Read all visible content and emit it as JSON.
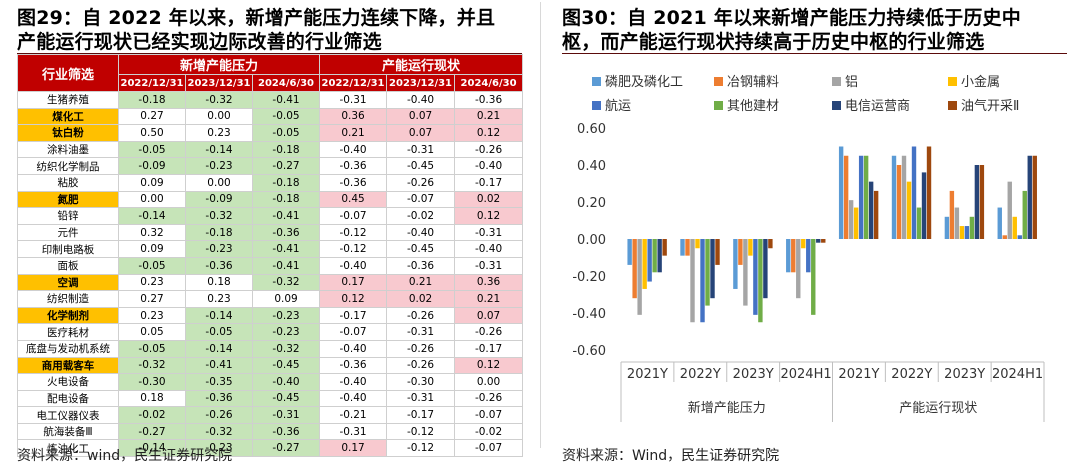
{
  "left": {
    "title_lines": [
      "图29：自 2022 年以来，新增产能压力连续下降，并且",
      "产能运行现状已经实现边际改善的行业筛选"
    ],
    "source": "资料来源：wind，民生证券研究院",
    "table": {
      "col1_header": "行业筛选",
      "group1_header": "新增产能压力",
      "group2_header": "产能运行现状",
      "dates": [
        "2022/12/31",
        "2023/12/31",
        "2024/6/30",
        "2022/12/31",
        "2023/12/31",
        "2024/6/30"
      ],
      "rows": [
        {
          "name": "生猪养殖",
          "hl": false,
          "v": [
            "-0.18",
            "-0.32",
            "-0.41",
            "-0.31",
            "-0.40",
            "-0.36"
          ],
          "pink": [
            false,
            false,
            false
          ]
        },
        {
          "name": "煤化工",
          "hl": true,
          "v": [
            "0.27",
            "0.00",
            "-0.05",
            "0.36",
            "0.07",
            "0.21"
          ],
          "pink": [
            true,
            true,
            true
          ]
        },
        {
          "name": "钛白粉",
          "hl": true,
          "v": [
            "0.50",
            "0.23",
            "-0.05",
            "0.21",
            "0.07",
            "0.12"
          ],
          "pink": [
            true,
            true,
            true
          ]
        },
        {
          "name": "涂料油墨",
          "hl": false,
          "v": [
            "-0.05",
            "-0.14",
            "-0.18",
            "-0.40",
            "-0.31",
            "-0.26"
          ],
          "pink": [
            false,
            false,
            false
          ]
        },
        {
          "name": "纺织化学制品",
          "hl": false,
          "v": [
            "-0.09",
            "-0.23",
            "-0.27",
            "-0.36",
            "-0.45",
            "-0.40"
          ],
          "pink": [
            false,
            false,
            false
          ]
        },
        {
          "name": "粘胶",
          "hl": false,
          "v": [
            "0.09",
            "0.00",
            "-0.18",
            "-0.36",
            "-0.26",
            "-0.17"
          ],
          "pink": [
            false,
            false,
            false
          ]
        },
        {
          "name": "氮肥",
          "hl": true,
          "v": [
            "0.00",
            "-0.09",
            "-0.18",
            "0.45",
            "-0.07",
            "0.02"
          ],
          "pink": [
            true,
            false,
            true
          ]
        },
        {
          "name": "铅锌",
          "hl": false,
          "v": [
            "-0.14",
            "-0.32",
            "-0.41",
            "-0.07",
            "-0.02",
            "0.12"
          ],
          "pink": [
            false,
            false,
            true
          ]
        },
        {
          "name": "元件",
          "hl": false,
          "v": [
            "0.32",
            "-0.18",
            "-0.36",
            "-0.12",
            "-0.40",
            "-0.31"
          ],
          "pink": [
            false,
            false,
            false
          ]
        },
        {
          "name": "印制电路板",
          "hl": false,
          "v": [
            "0.09",
            "-0.23",
            "-0.41",
            "-0.12",
            "-0.45",
            "-0.40"
          ],
          "pink": [
            false,
            false,
            false
          ]
        },
        {
          "name": "面板",
          "hl": false,
          "v": [
            "-0.05",
            "-0.36",
            "-0.41",
            "-0.40",
            "-0.36",
            "-0.31"
          ],
          "pink": [
            false,
            false,
            false
          ]
        },
        {
          "name": "空调",
          "hl": true,
          "v": [
            "0.23",
            "0.18",
            "-0.32",
            "0.17",
            "0.21",
            "0.36"
          ],
          "pink": [
            true,
            true,
            true
          ]
        },
        {
          "name": "纺织制造",
          "hl": false,
          "v": [
            "0.27",
            "0.23",
            "0.09",
            "0.12",
            "0.02",
            "0.21"
          ],
          "pink": [
            true,
            true,
            true
          ]
        },
        {
          "name": "化学制剂",
          "hl": true,
          "v": [
            "0.23",
            "-0.14",
            "-0.23",
            "-0.17",
            "-0.26",
            "0.07"
          ],
          "pink": [
            false,
            false,
            true
          ]
        },
        {
          "name": "医疗耗材",
          "hl": false,
          "v": [
            "0.05",
            "-0.05",
            "-0.23",
            "-0.07",
            "-0.31",
            "-0.26"
          ],
          "pink": [
            false,
            false,
            false
          ]
        },
        {
          "name": "底盘与发动机系统",
          "hl": false,
          "v": [
            "-0.05",
            "-0.14",
            "-0.32",
            "-0.40",
            "-0.26",
            "-0.17"
          ],
          "pink": [
            false,
            false,
            false
          ]
        },
        {
          "name": "商用载客车",
          "hl": true,
          "v": [
            "-0.32",
            "-0.41",
            "-0.45",
            "-0.36",
            "-0.26",
            "0.12"
          ],
          "pink": [
            false,
            false,
            true
          ]
        },
        {
          "name": "火电设备",
          "hl": false,
          "v": [
            "-0.30",
            "-0.35",
            "-0.40",
            "-0.40",
            "-0.30",
            "0.00"
          ],
          "pink": [
            false,
            false,
            false
          ]
        },
        {
          "name": "配电设备",
          "hl": false,
          "v": [
            "0.18",
            "-0.36",
            "-0.45",
            "-0.40",
            "-0.31",
            "-0.26"
          ],
          "pink": [
            false,
            false,
            false
          ]
        },
        {
          "name": "电工仪器仪表",
          "hl": false,
          "v": [
            "-0.02",
            "-0.26",
            "-0.31",
            "-0.21",
            "-0.17",
            "-0.07"
          ],
          "pink": [
            false,
            false,
            false
          ]
        },
        {
          "name": "航海装备Ⅲ",
          "hl": false,
          "v": [
            "-0.27",
            "-0.32",
            "-0.36",
            "-0.31",
            "-0.12",
            "-0.02"
          ],
          "pink": [
            false,
            false,
            false
          ]
        },
        {
          "name": "炼油化工",
          "hl": false,
          "v": [
            "-0.14",
            "-0.23",
            "-0.27",
            "0.17",
            "-0.12",
            "-0.07"
          ],
          "pink": [
            true,
            false,
            false
          ]
        }
      ]
    }
  },
  "right": {
    "title_lines": [
      "图30：自  2021  年以来新增产能压力持续低于历史中",
      "枢，而产能运行现状持续高于历史中枢的行业筛选"
    ],
    "source": "资料来源：Wind，民生证券研究院"
  },
  "chart_data": {
    "type": "bar",
    "categories": [
      "2021Y",
      "2022Y",
      "2023Y",
      "2024H1",
      "2021Y",
      "2022Y",
      "2023Y",
      "2024H1"
    ],
    "groups": [
      {
        "label": "新增产能压力",
        "span": [
          0,
          3
        ]
      },
      {
        "label": "产能运行现状",
        "span": [
          4,
          7
        ]
      }
    ],
    "ylim": [
      -0.6,
      0.6
    ],
    "yticks": [
      "0.60",
      "0.40",
      "0.20",
      "0.00",
      "-0.20",
      "-0.40",
      "-0.60"
    ],
    "ytick_values": [
      0.6,
      0.4,
      0.2,
      0.0,
      -0.2,
      -0.4,
      -0.6
    ],
    "legend_position": "top",
    "series": [
      {
        "name": "磷肥及磷化工",
        "color": "#5b9bd5",
        "values": [
          -0.14,
          -0.09,
          -0.27,
          -0.18,
          0.5,
          0.45,
          0.12,
          0.17
        ]
      },
      {
        "name": "冶钢辅料",
        "color": "#ed7d31",
        "values": [
          -0.32,
          -0.09,
          -0.14,
          -0.18,
          0.45,
          0.4,
          0.26,
          0.02
        ]
      },
      {
        "name": "铝",
        "color": "#a5a5a5",
        "values": [
          -0.41,
          -0.45,
          -0.36,
          -0.32,
          0.21,
          0.45,
          0.17,
          0.31
        ]
      },
      {
        "name": "小金属",
        "color": "#ffc000",
        "values": [
          -0.27,
          -0.05,
          -0.09,
          -0.05,
          0.17,
          0.31,
          0.07,
          0.12
        ]
      },
      {
        "name": "航运",
        "color": "#4472c4",
        "values": [
          -0.23,
          -0.45,
          -0.41,
          -0.18,
          0.45,
          0.5,
          0.07,
          0.02
        ]
      },
      {
        "name": "其他建材",
        "color": "#70ad47",
        "values": [
          -0.18,
          -0.36,
          -0.45,
          -0.41,
          0.45,
          0.17,
          0.12,
          0.26
        ]
      },
      {
        "name": "电信运营商",
        "color": "#264478",
        "values": [
          -0.18,
          -0.32,
          -0.32,
          -0.02,
          0.31,
          0.36,
          0.4,
          0.45
        ]
      },
      {
        "name": "油气开采Ⅱ",
        "color": "#9e480e",
        "values": [
          -0.09,
          -0.14,
          -0.05,
          -0.02,
          0.26,
          0.5,
          0.4,
          0.45
        ]
      }
    ]
  }
}
